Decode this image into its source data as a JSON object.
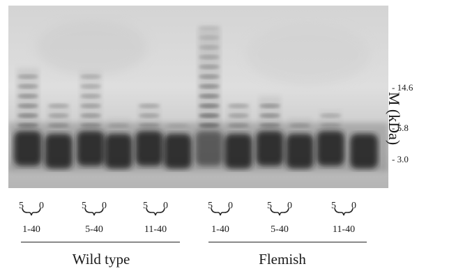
{
  "markers": [
    "- 14.6",
    "- 5.8",
    "- 3.0"
  ],
  "axis_title": "M  (kDa)",
  "lane_groups": [
    {
      "high": "5",
      "low": "0",
      "range": "1-40"
    },
    {
      "high": "5",
      "low": "0",
      "range": "5-40"
    },
    {
      "high": "5",
      "low": "0",
      "range": "11-40"
    },
    {
      "high": "5",
      "low": "0",
      "range": "1-40"
    },
    {
      "high": "5",
      "low": "0",
      "range": "5-40"
    },
    {
      "high": "5",
      "low": "0",
      "range": "11-40"
    }
  ],
  "groups": [
    "Wild type",
    "Flemish"
  ]
}
